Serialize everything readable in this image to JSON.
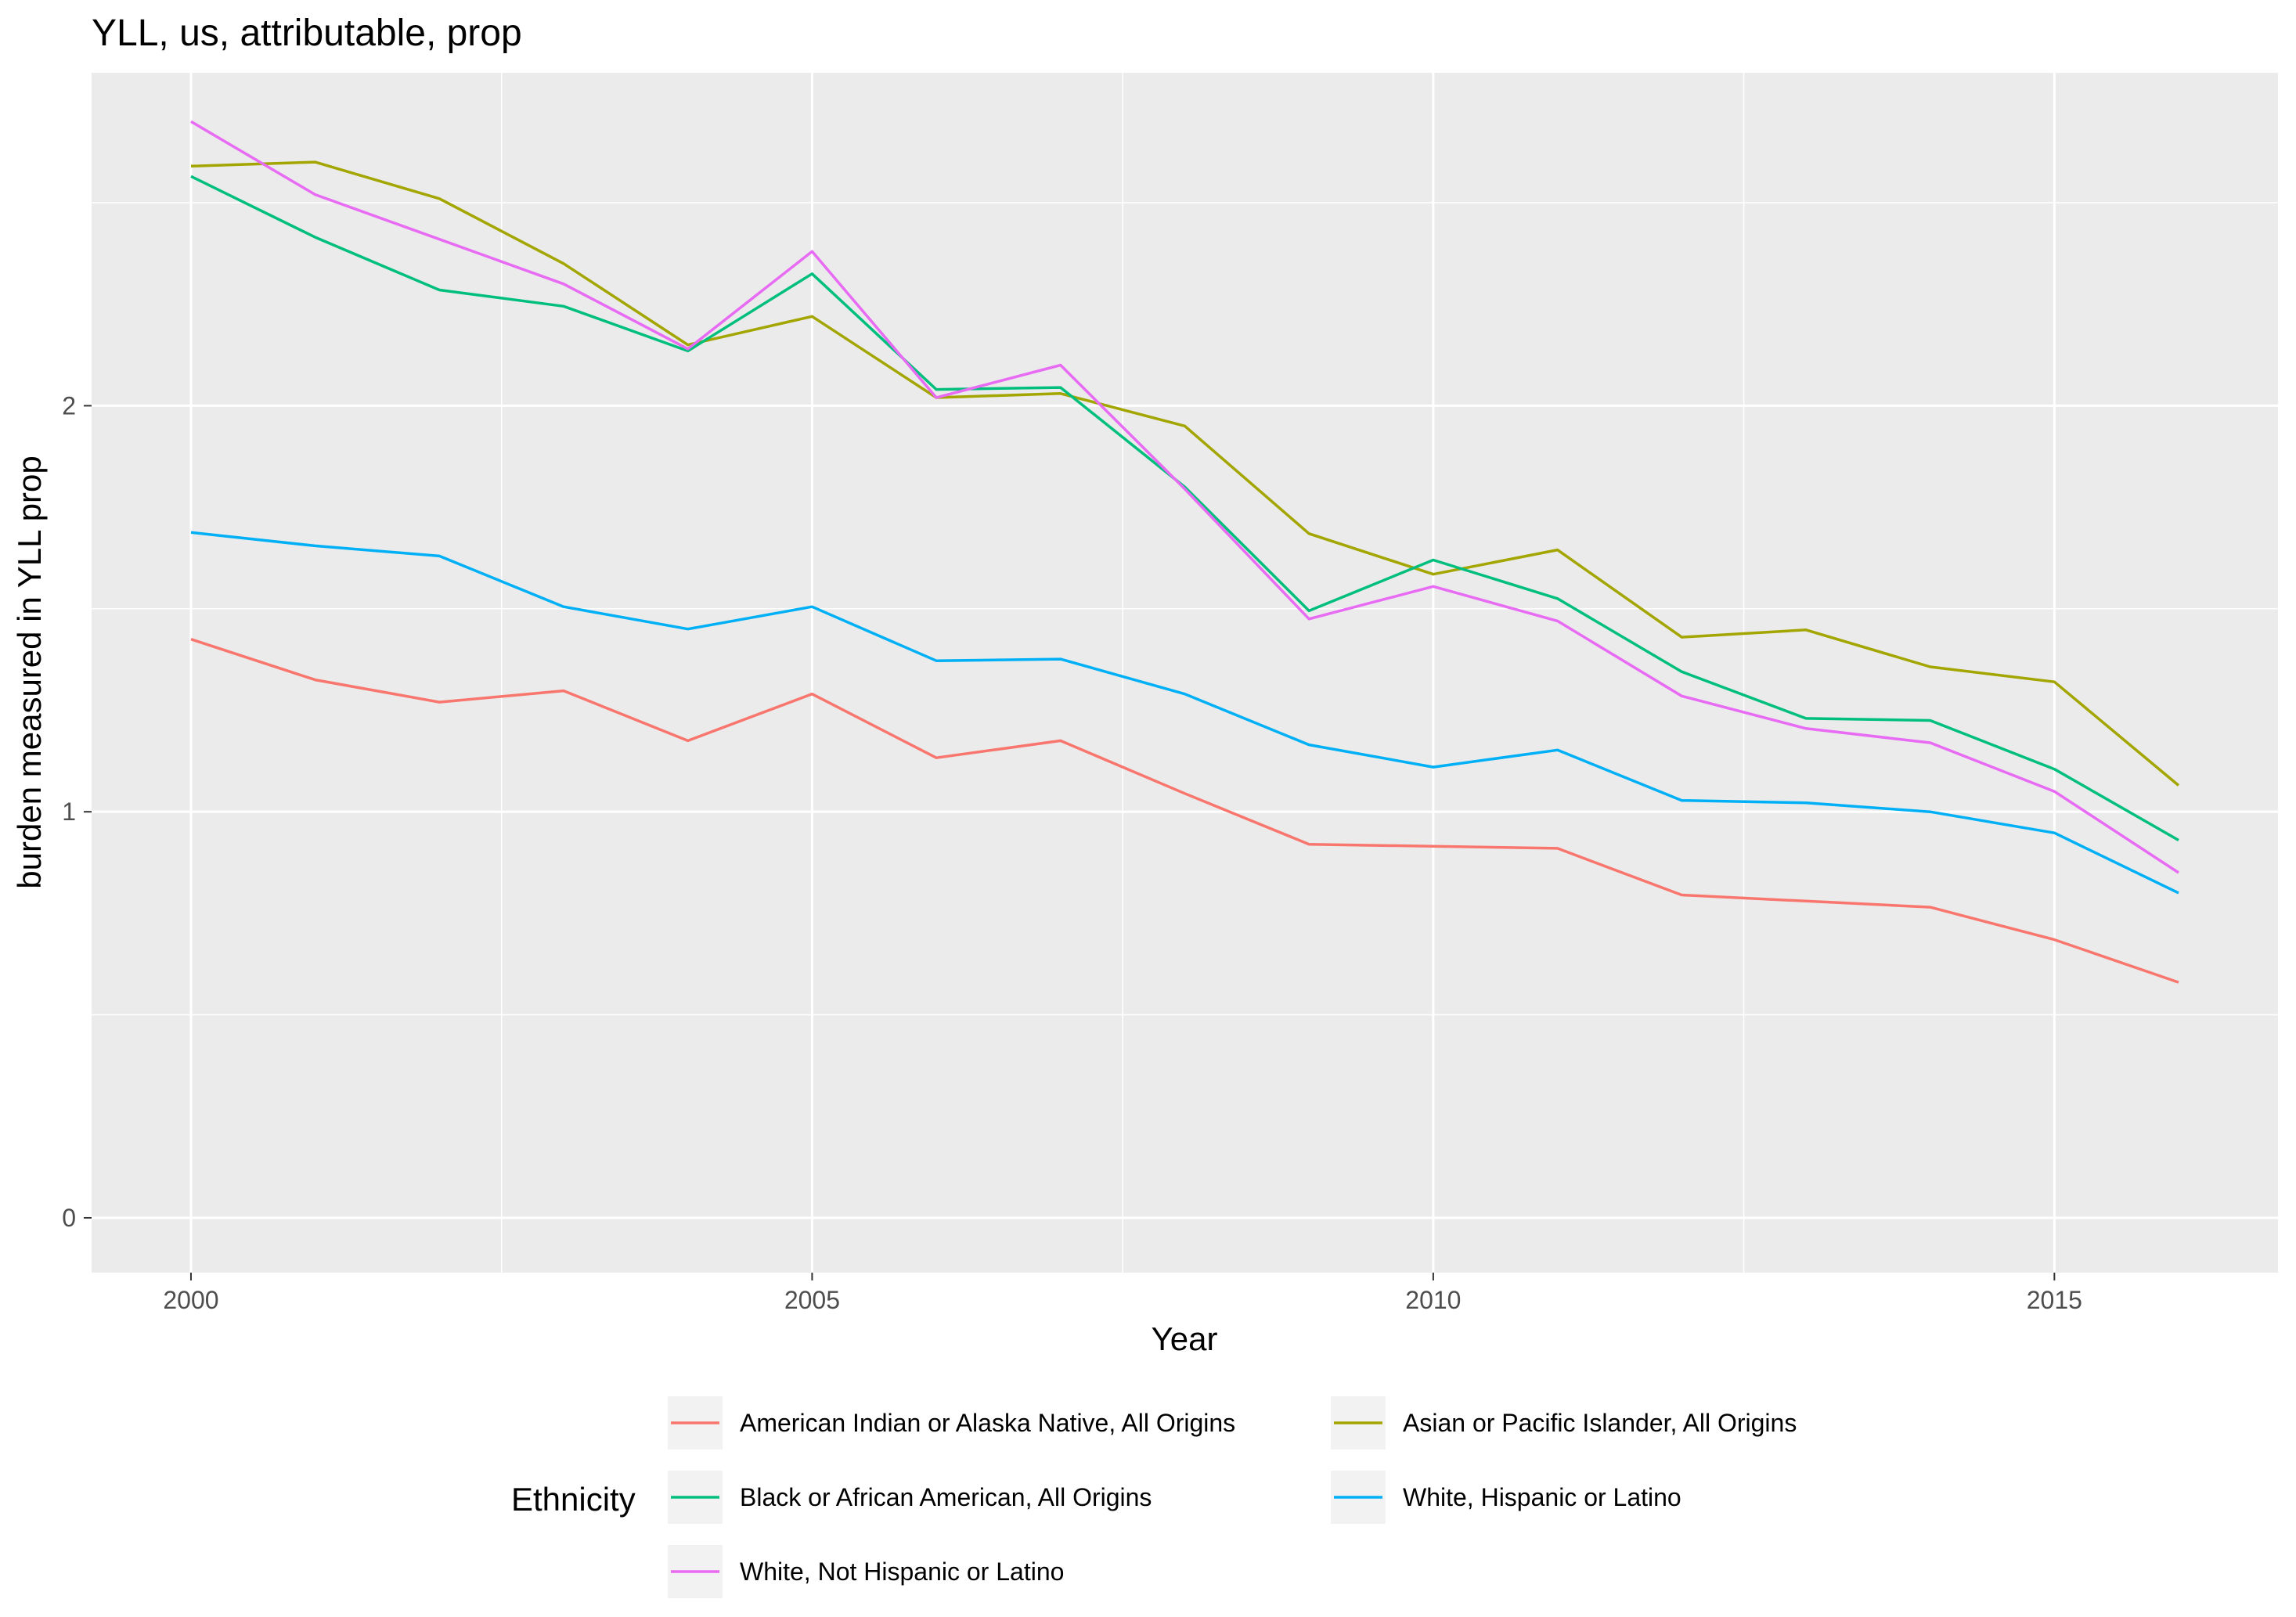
{
  "chart_data": {
    "type": "line",
    "title": "YLL, us, attributable, prop",
    "xlabel": "Year",
    "ylabel": "burden measured in YLL prop",
    "xlim": [
      1999.2,
      2016.8
    ],
    "ylim": [
      -0.135,
      2.82
    ],
    "x_ticks": [
      2000,
      2005,
      2010,
      2015
    ],
    "y_ticks": [
      0,
      1,
      2
    ],
    "x_minor": [
      2002.5,
      2007.5,
      2012.5
    ],
    "y_minor": [
      0.5,
      1.5,
      2.5
    ],
    "grid": true,
    "legend": {
      "title": "Ethnicity",
      "position": "bottom"
    },
    "x": [
      2000,
      2001,
      2002,
      2003,
      2004,
      2005,
      2006,
      2007,
      2008,
      2009,
      2010,
      2011,
      2012,
      2013,
      2014,
      2015,
      2016
    ],
    "series": [
      {
        "name": "American Indian or Alaska Native, All Origins",
        "color": "#F8766D",
        "values": [
          1.425,
          1.325,
          1.27,
          1.298,
          1.175,
          1.29,
          1.133,
          1.175,
          1.045,
          0.92,
          0.915,
          0.91,
          0.795,
          0.78,
          0.765,
          0.685,
          0.58
        ]
      },
      {
        "name": "Asian or Pacific Islander, All Origins",
        "color": "#A3A500",
        "values": [
          2.59,
          2.6,
          2.51,
          2.35,
          2.15,
          2.22,
          2.02,
          2.03,
          1.95,
          1.685,
          1.585,
          1.645,
          1.43,
          1.448,
          1.357,
          1.32,
          1.065
        ]
      },
      {
        "name": "Black or African American, All Origins",
        "color": "#00BF7D",
        "values": [
          2.565,
          2.415,
          2.285,
          2.245,
          2.135,
          2.325,
          2.04,
          2.045,
          1.8,
          1.495,
          1.62,
          1.525,
          1.345,
          1.23,
          1.225,
          1.105,
          0.93
        ]
      },
      {
        "name": "White, Hispanic or Latino",
        "color": "#00B0F6",
        "values": [
          1.688,
          1.655,
          1.63,
          1.505,
          1.45,
          1.505,
          1.372,
          1.376,
          1.29,
          1.165,
          1.11,
          1.152,
          1.028,
          1.022,
          1.0,
          0.948,
          0.8
        ]
      },
      {
        "name": "White, Not Hispanic or Latino",
        "color": "#E76BF3",
        "values": [
          2.7,
          2.52,
          2.41,
          2.3,
          2.14,
          2.38,
          2.02,
          2.1,
          1.795,
          1.475,
          1.555,
          1.47,
          1.285,
          1.205,
          1.17,
          1.05,
          0.85
        ]
      }
    ],
    "legend_order": [
      "American Indian or Alaska Native, All Origins",
      "Asian or Pacific Islander, All Origins",
      "Black or African American, All Origins",
      "White, Hispanic or Latino",
      "White, Not Hispanic or Latino"
    ]
  }
}
